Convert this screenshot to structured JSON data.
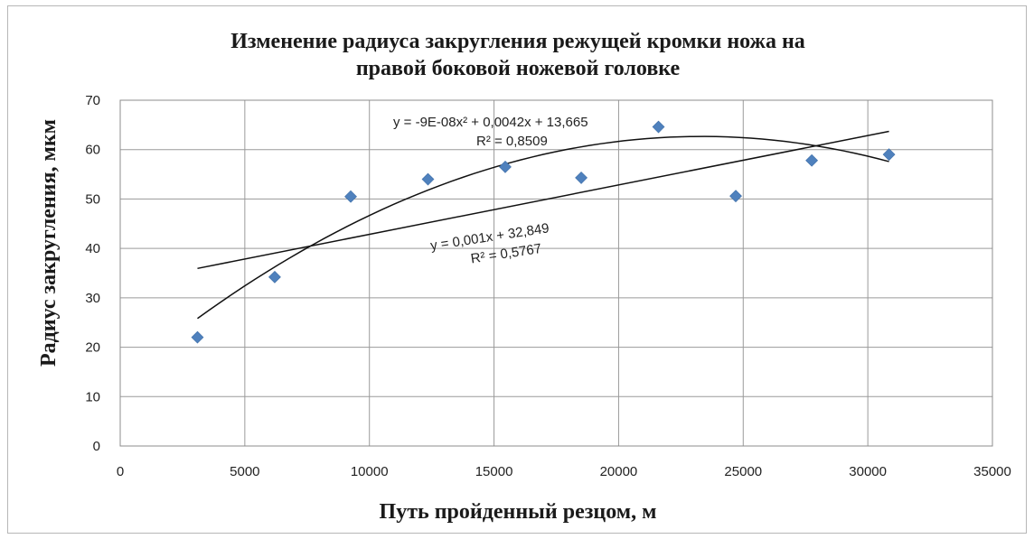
{
  "chart_data": {
    "type": "scatter",
    "title": [
      "Изменение радиуса закругления режущей кромки ножа на",
      "правой боковой ножевой головке"
    ],
    "xlabel": "Путь пройденный резцом, м",
    "ylabel": "Радиус закругления, мкм",
    "xlim": [
      0,
      35000
    ],
    "ylim": [
      0,
      70
    ],
    "x_ticks": [
      "0",
      "5000",
      "10000",
      "15000",
      "20000",
      "25000",
      "30000",
      "35000"
    ],
    "y_ticks": [
      "0",
      "10",
      "20",
      "30",
      "40",
      "50",
      "60",
      "70"
    ],
    "x_tick_values": [
      0,
      5000,
      10000,
      15000,
      20000,
      25000,
      30000,
      35000
    ],
    "y_tick_values": [
      0,
      10,
      20,
      30,
      40,
      50,
      60,
      70
    ],
    "grid": true,
    "marker": "diamond",
    "marker_color": "#4f81bd",
    "series": [
      {
        "points": [
          {
            "x": 3100,
            "y": 22
          },
          {
            "x": 6200,
            "y": 34.2
          },
          {
            "x": 9250,
            "y": 50.5
          },
          {
            "x": 12350,
            "y": 54
          },
          {
            "x": 15450,
            "y": 56.5
          },
          {
            "x": 18500,
            "y": 54.3
          },
          {
            "x": 21600,
            "y": 64.6
          },
          {
            "x": 24700,
            "y": 50.6
          },
          {
            "x": 27750,
            "y": 57.8
          },
          {
            "x": 30850,
            "y": 59
          }
        ]
      }
    ],
    "trendlines": [
      {
        "type": "linear",
        "color": "#111111",
        "coefficients": [
          32.849,
          0.001
        ],
        "x_range": [
          3100,
          30850
        ],
        "equation": "y = 0,001x + 32,849",
        "r2": "R² = 0,5767"
      },
      {
        "type": "polynomial",
        "color": "#111111",
        "coefficients": [
          13.665,
          0.0042,
          -9e-08
        ],
        "x_range": [
          3100,
          30850
        ],
        "equation": "y = -9E-08x² + 0,0042x + 13,665",
        "r2": "R² = 0,8509"
      }
    ]
  }
}
